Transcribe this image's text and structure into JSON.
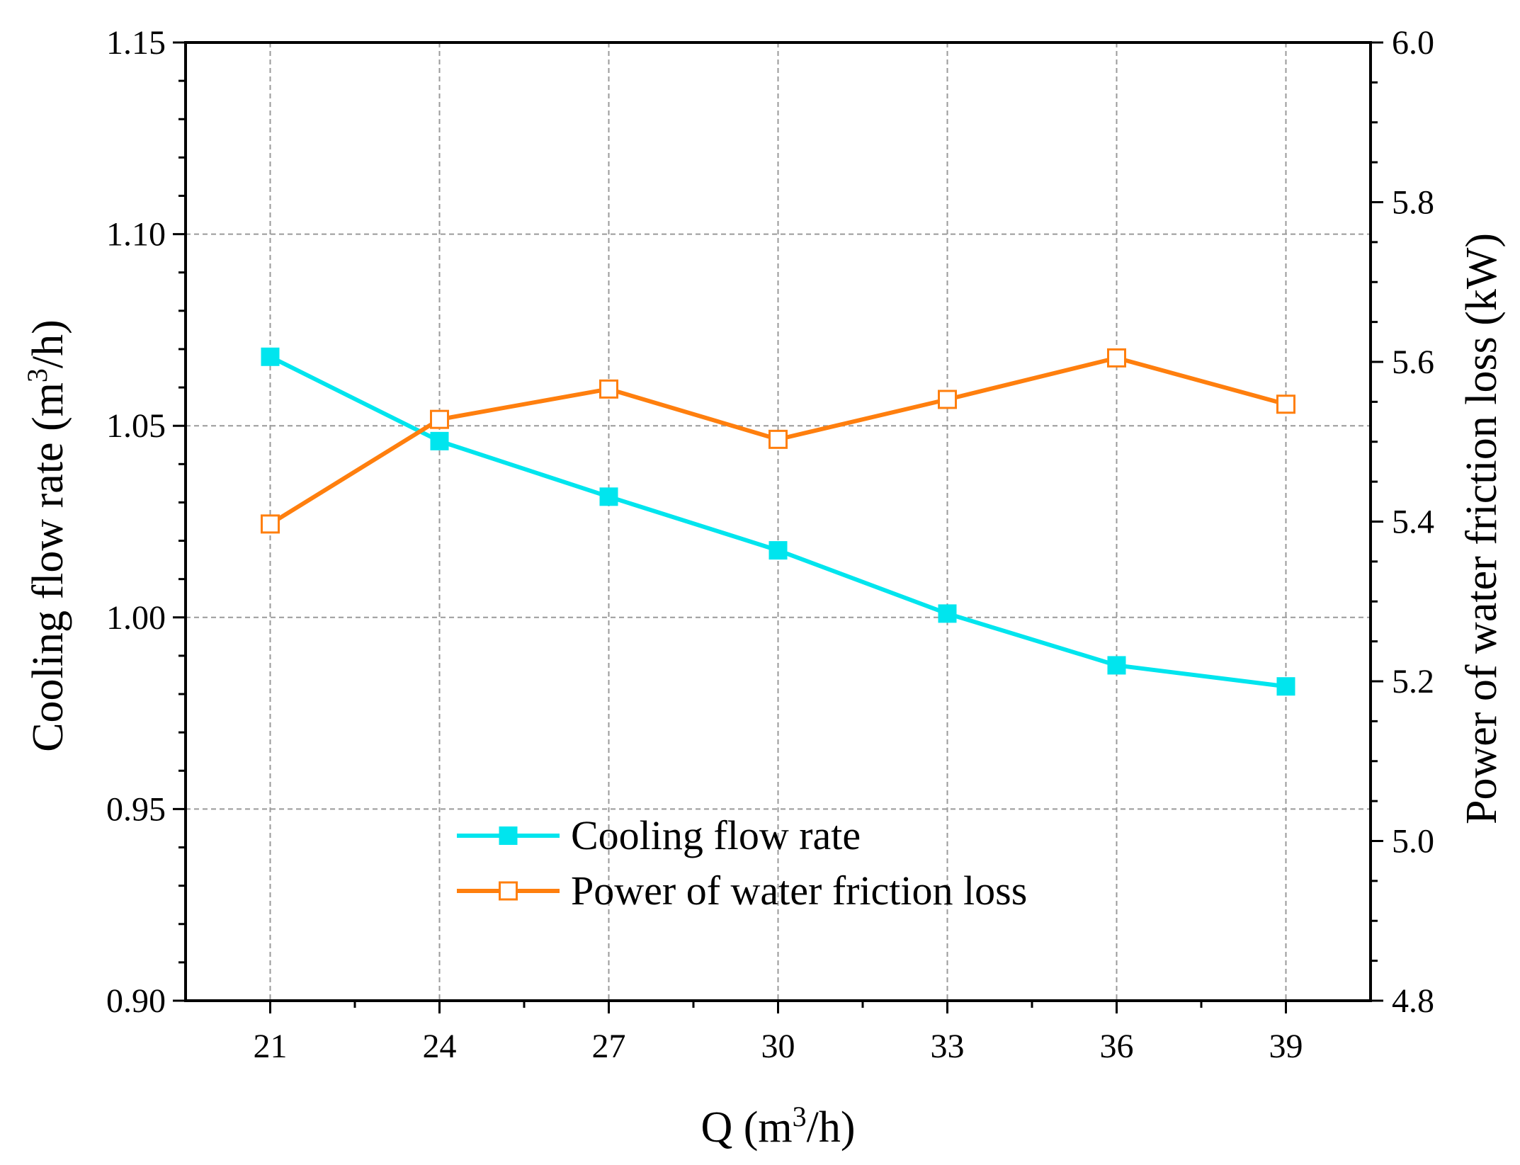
{
  "colors": {
    "cooling": "#00e5ee",
    "power": "#ff7f0e",
    "axis": "#000000",
    "grid": "#9a9a9a"
  },
  "chart_data": {
    "type": "line",
    "x": [
      21,
      24,
      27,
      30,
      33,
      36,
      39
    ],
    "xlim": [
      19.5,
      40.5
    ],
    "x_ticks": [
      "21",
      "24",
      "27",
      "30",
      "33",
      "36",
      "39"
    ],
    "xlabel_main": "Q (m",
    "xlabel_sup": "3",
    "xlabel_tail": "/h)",
    "left_axis": {
      "label_main": "Cooling flow rate (m",
      "label_sup": "3",
      "label_tail": "/h)",
      "ylim": [
        0.9,
        1.15
      ],
      "ticks": [
        "0.90",
        "0.95",
        "1.00",
        "1.05",
        "1.10",
        "1.15"
      ],
      "tick_values": [
        0.9,
        0.95,
        1.0,
        1.05,
        1.1,
        1.15
      ]
    },
    "right_axis": {
      "label": "Power of water friction loss (kW)",
      "ylim": [
        4.8,
        6.0
      ],
      "ticks": [
        "4.8",
        "5.0",
        "5.2",
        "5.4",
        "5.6",
        "5.8",
        "6.0"
      ],
      "tick_values": [
        4.8,
        5.0,
        5.2,
        5.4,
        5.6,
        5.8,
        6.0
      ]
    },
    "series": [
      {
        "name": "Cooling flow rate",
        "axis": "left",
        "marker": "filled-square",
        "values": [
          1.068,
          1.046,
          1.0315,
          1.0175,
          1.001,
          0.9875,
          0.982
        ]
      },
      {
        "name": "Power of water friction loss",
        "axis": "right",
        "marker": "open-square",
        "values": [
          5.397,
          5.528,
          5.566,
          5.503,
          5.553,
          5.605,
          5.547
        ]
      }
    ],
    "grid": true,
    "legend_position": "bottom-center"
  }
}
